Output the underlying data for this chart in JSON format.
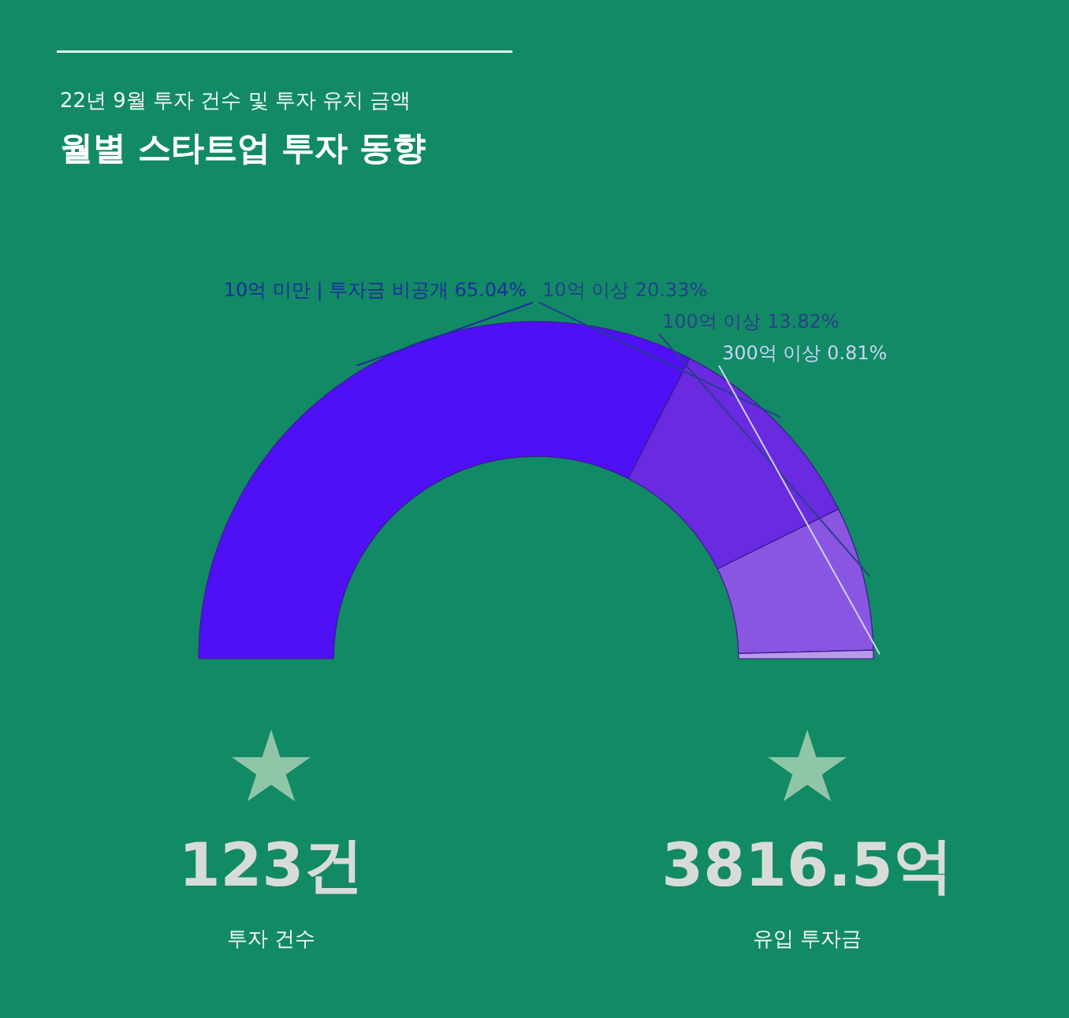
{
  "chart_data": {
    "type": "donut",
    "title": "월별 스타트업 투자 동향",
    "subtitle": "22년 9월 투자 건수 및 투자 유치 금액",
    "categories": [
      "10억 미만 | 투자금 비공개",
      "10억 이상",
      "100억 이상",
      "300억 이상"
    ],
    "values": [
      65.04,
      20.33,
      13.82,
      0.81
    ],
    "colors": [
      "#5010f5",
      "#6a2ae0",
      "#8a55e0",
      "#b89ae8"
    ],
    "value_labels": [
      "65.04%",
      "20.33%",
      "13.82%",
      "0.81%"
    ],
    "annotations": [
      "123건",
      "투자 건수",
      "3816.5억",
      "유입 투자금"
    ]
  }
}
